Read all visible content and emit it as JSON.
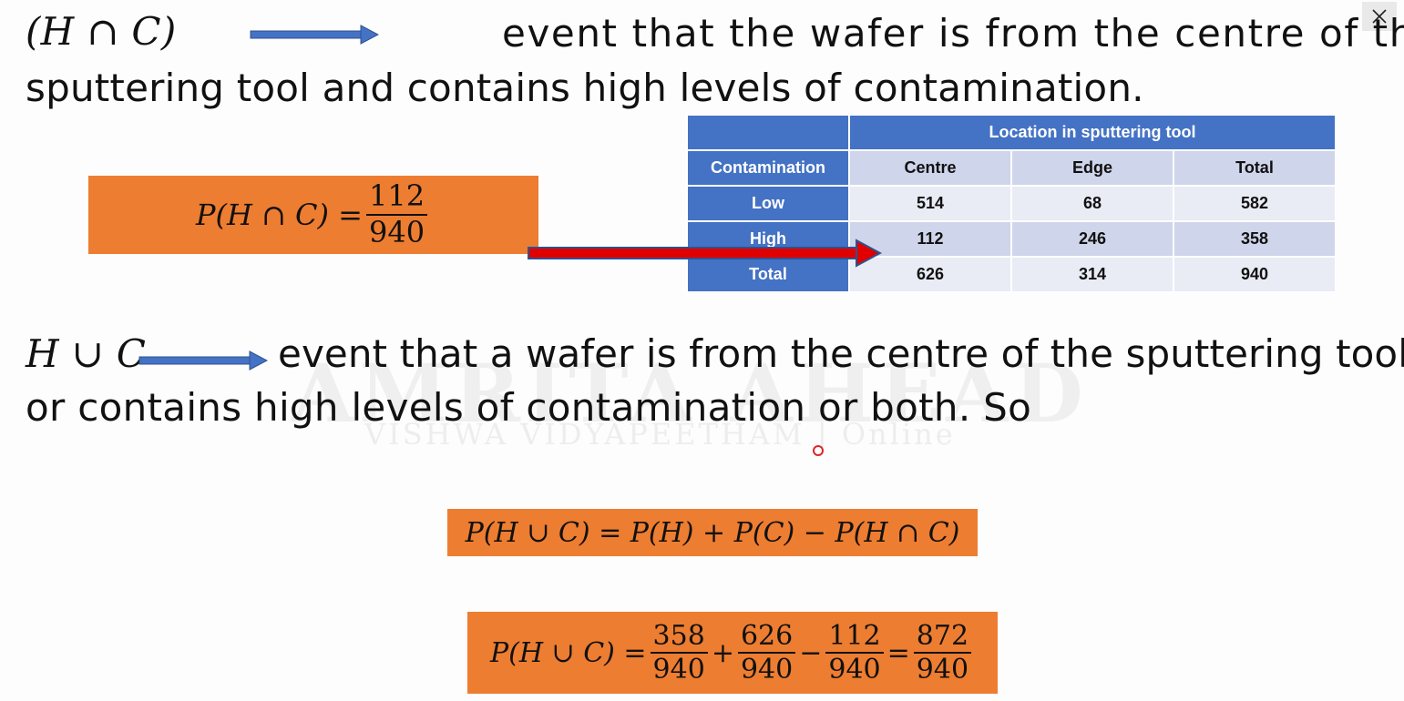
{
  "watermark": {
    "main": "AMRITA AHEAD",
    "sub": "VISHWA VIDYAPEETHAM | Online"
  },
  "line1": {
    "symbol": "(H ∩ C)",
    "text": "event that the wafer is from the centre of the"
  },
  "line2": {
    "text": "sputtering tool and contains high levels of contamination."
  },
  "formula1": {
    "lhs": "P(H ∩ C) =",
    "num": "112",
    "den": "940"
  },
  "table": {
    "group_header": "Location in sputtering tool",
    "columns": [
      "Contamination",
      "Centre",
      "Edge",
      "Total"
    ],
    "rows": [
      [
        "Low",
        "514",
        "68",
        "582"
      ],
      [
        "High",
        "112",
        "246",
        "358"
      ],
      [
        "Total",
        "626",
        "314",
        "940"
      ]
    ]
  },
  "line3": {
    "symbol": "H ∪ C",
    "text": "event that a wafer is from the centre of the sputtering tool"
  },
  "line4": {
    "text": "or contains high levels of contamination or both. So"
  },
  "formula2": {
    "text": "P(H ∪ C) = P(H) + P(C) − P(H ∩ C)"
  },
  "formula3": {
    "lhs": "P(H ∪ C) =",
    "t1": {
      "num": "358",
      "den": "940"
    },
    "op1": "+",
    "t2": {
      "num": "626",
      "den": "940"
    },
    "op2": "−",
    "t3": {
      "num": "112",
      "den": "940"
    },
    "op3": "=",
    "t4": {
      "num": "872",
      "den": "940"
    }
  },
  "colors": {
    "orange": "#ed7d31",
    "table_header": "#4472c4",
    "arrow_blue": "#4472c4",
    "arrow_red": "#e00000"
  },
  "icons": {
    "close": "close-icon"
  }
}
